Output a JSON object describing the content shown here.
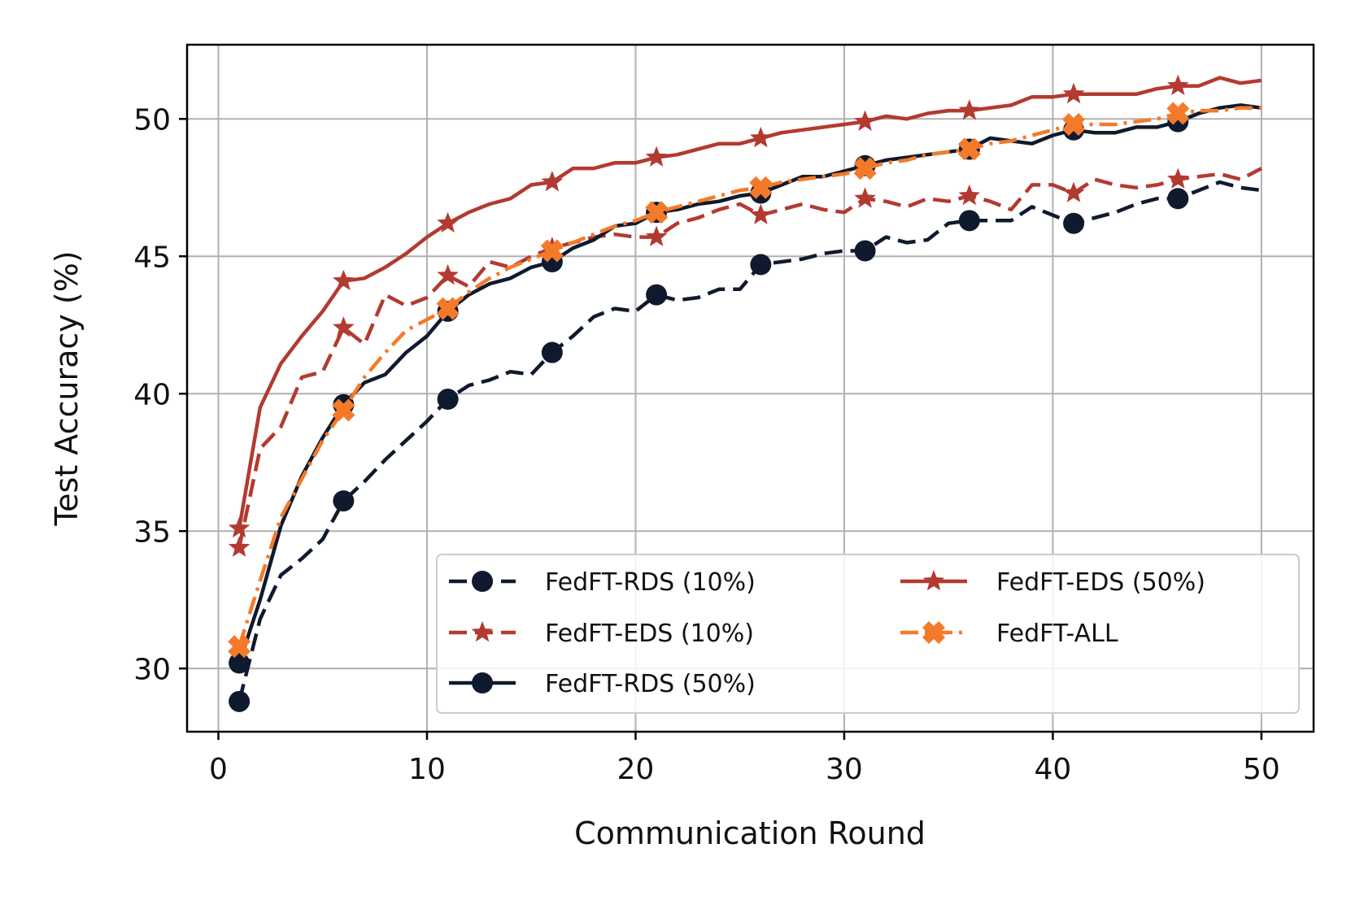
{
  "chart_data": {
    "type": "line",
    "title": "",
    "xlabel": "Communication Round",
    "ylabel": "Test Accuracy (%)",
    "xlim": [
      -1.5,
      52.5
    ],
    "ylim": [
      27.7,
      52.7
    ],
    "xticks": [
      0,
      10,
      20,
      30,
      40,
      50
    ],
    "yticks": [
      30,
      35,
      40,
      45,
      50
    ],
    "grid": true,
    "legend_position": "lower-right",
    "legend_columns": 2,
    "x": [
      1,
      2,
      3,
      4,
      5,
      6,
      7,
      8,
      9,
      10,
      11,
      12,
      13,
      14,
      15,
      16,
      17,
      18,
      19,
      20,
      21,
      22,
      23,
      24,
      25,
      26,
      27,
      28,
      29,
      30,
      31,
      32,
      33,
      34,
      35,
      36,
      37,
      38,
      39,
      40,
      41,
      42,
      43,
      44,
      45,
      46,
      47,
      48,
      49,
      50
    ],
    "series": [
      {
        "name": "FedFT-RDS (10%)",
        "color": "#101a2e",
        "dash": "dashed",
        "marker": "circle",
        "marker_x": [
          1,
          6,
          11,
          16,
          21,
          26,
          31,
          36,
          41,
          46
        ],
        "values": [
          28.8,
          31.8,
          33.4,
          34.0,
          34.7,
          36.1,
          36.8,
          37.6,
          38.3,
          39.0,
          39.8,
          40.3,
          40.5,
          40.8,
          40.7,
          41.5,
          42.1,
          42.8,
          43.1,
          43.0,
          43.6,
          43.4,
          43.5,
          43.8,
          43.8,
          44.7,
          44.8,
          44.9,
          45.1,
          45.2,
          45.2,
          45.7,
          45.5,
          45.6,
          46.2,
          46.3,
          46.3,
          46.3,
          46.8,
          46.5,
          46.2,
          46.4,
          46.6,
          46.9,
          47.1,
          47.1,
          47.4,
          47.7,
          47.5,
          47.4
        ]
      },
      {
        "name": "FedFT-EDS (10%)",
        "color": "#b33a31",
        "dash": "dashed",
        "marker": "star",
        "marker_x": [
          1,
          6,
          11,
          16,
          21,
          26,
          31,
          36,
          41,
          46
        ],
        "values": [
          34.4,
          38.0,
          38.8,
          40.6,
          40.8,
          42.4,
          41.8,
          43.6,
          43.2,
          43.5,
          44.3,
          43.9,
          44.8,
          44.6,
          45.0,
          45.3,
          45.5,
          45.7,
          45.8,
          45.7,
          45.7,
          46.2,
          46.4,
          46.7,
          46.9,
          46.5,
          46.7,
          46.9,
          46.7,
          46.6,
          47.1,
          47.0,
          46.8,
          47.1,
          47.0,
          47.2,
          47.0,
          46.7,
          47.6,
          47.6,
          47.3,
          47.8,
          47.6,
          47.5,
          47.6,
          47.8,
          47.9,
          48.0,
          47.8,
          48.2
        ]
      },
      {
        "name": "FedFT-RDS (50%)",
        "color": "#101a2e",
        "dash": "solid",
        "marker": "circle",
        "marker_x": [
          1,
          6,
          11,
          16,
          21,
          26,
          31,
          36,
          41,
          46
        ],
        "values": [
          30.2,
          32.5,
          35.2,
          37.0,
          38.4,
          39.6,
          40.4,
          40.7,
          41.5,
          42.1,
          43.0,
          43.6,
          44.0,
          44.2,
          44.6,
          44.8,
          45.3,
          45.6,
          46.1,
          46.2,
          46.6,
          46.7,
          46.9,
          47.0,
          47.2,
          47.3,
          47.6,
          47.9,
          47.9,
          48.1,
          48.3,
          48.5,
          48.6,
          48.7,
          48.8,
          48.9,
          49.3,
          49.2,
          49.1,
          49.4,
          49.6,
          49.5,
          49.5,
          49.7,
          49.7,
          49.9,
          50.2,
          50.4,
          50.5,
          50.4
        ]
      },
      {
        "name": "FedFT-EDS (50%)",
        "color": "#b33a31",
        "dash": "solid",
        "marker": "star",
        "marker_x": [
          1,
          6,
          11,
          16,
          21,
          26,
          31,
          36,
          41,
          46
        ],
        "values": [
          35.1,
          39.5,
          41.1,
          42.1,
          43.0,
          44.1,
          44.2,
          44.6,
          45.1,
          45.7,
          46.2,
          46.6,
          46.9,
          47.1,
          47.6,
          47.7,
          48.2,
          48.2,
          48.4,
          48.4,
          48.6,
          48.7,
          48.9,
          49.1,
          49.1,
          49.3,
          49.5,
          49.6,
          49.7,
          49.8,
          49.9,
          50.1,
          50.0,
          50.2,
          50.3,
          50.3,
          50.4,
          50.5,
          50.8,
          50.8,
          50.9,
          50.9,
          50.9,
          50.9,
          51.1,
          51.2,
          51.2,
          51.5,
          51.3,
          51.4
        ]
      },
      {
        "name": "FedFT-ALL",
        "color": "#f47a2a",
        "dash": "dashdot",
        "marker": "x-filled",
        "marker_x": [
          1,
          6,
          11,
          16,
          21,
          26,
          31,
          36,
          41,
          46
        ],
        "values": [
          30.8,
          33.2,
          35.5,
          36.9,
          38.3,
          39.4,
          40.6,
          41.5,
          42.3,
          42.7,
          43.1,
          43.7,
          44.2,
          44.6,
          44.9,
          45.2,
          45.5,
          45.8,
          46.1,
          46.3,
          46.6,
          46.8,
          47.0,
          47.2,
          47.4,
          47.5,
          47.7,
          47.8,
          47.9,
          48.0,
          48.2,
          48.4,
          48.5,
          48.7,
          48.8,
          48.9,
          49.1,
          49.2,
          49.4,
          49.6,
          49.8,
          49.8,
          49.8,
          49.9,
          50.0,
          50.2,
          50.3,
          50.3,
          50.4,
          50.4
        ]
      }
    ]
  }
}
